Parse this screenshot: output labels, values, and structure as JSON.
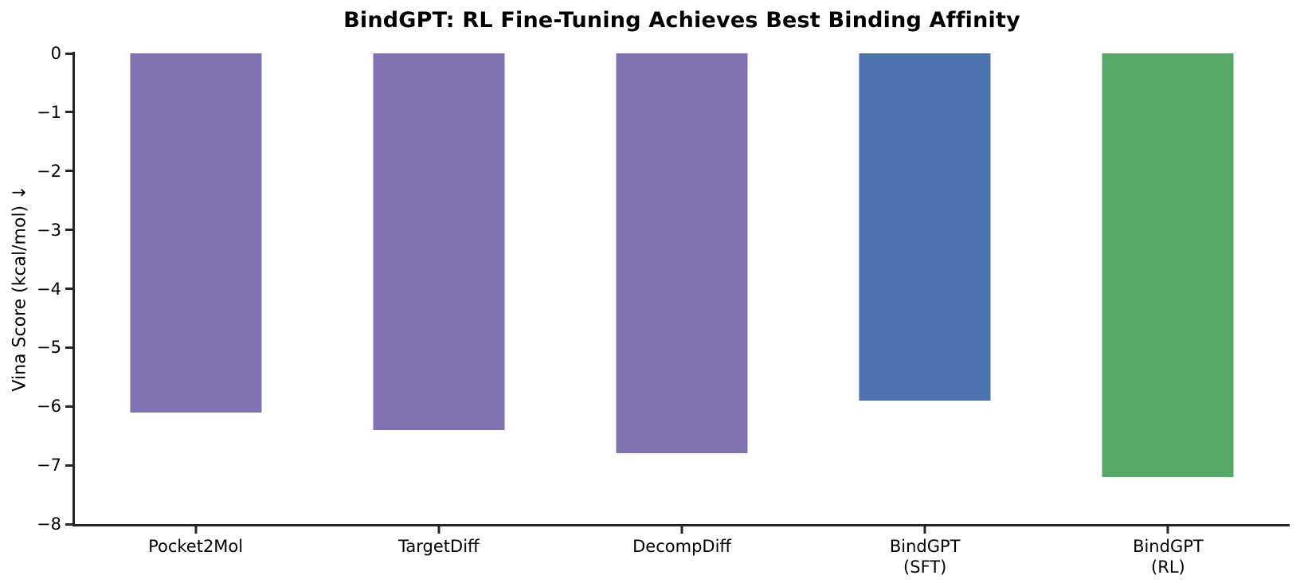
{
  "chart_data": {
    "type": "bar",
    "title": "BindGPT: RL Fine-Tuning Achieves Best Binding Affinity",
    "ylabel": "Vina Score (kcal/mol) ↓",
    "xlabel": "",
    "categories": [
      "Pocket2Mol",
      "TargetDiff",
      "DecompDiff",
      "BindGPT\n(SFT)",
      "BindGPT\n(RL)"
    ],
    "values": [
      -6.1,
      -6.4,
      -6.8,
      -5.9,
      -7.2
    ],
    "bar_colors": [
      "#8172B2",
      "#8172B2",
      "#8172B2",
      "#4C72B0",
      "#55A868"
    ],
    "ylim": [
      -8,
      0
    ],
    "yticks": [
      0,
      -1,
      -2,
      -3,
      -4,
      -5,
      -6,
      -7,
      -8
    ],
    "ytick_labels": [
      "0",
      "−1",
      "−2",
      "−3",
      "−4",
      "−5",
      "−6",
      "−7",
      "−8"
    ],
    "grid": false,
    "legend": "none",
    "axis_color": "#262626"
  }
}
